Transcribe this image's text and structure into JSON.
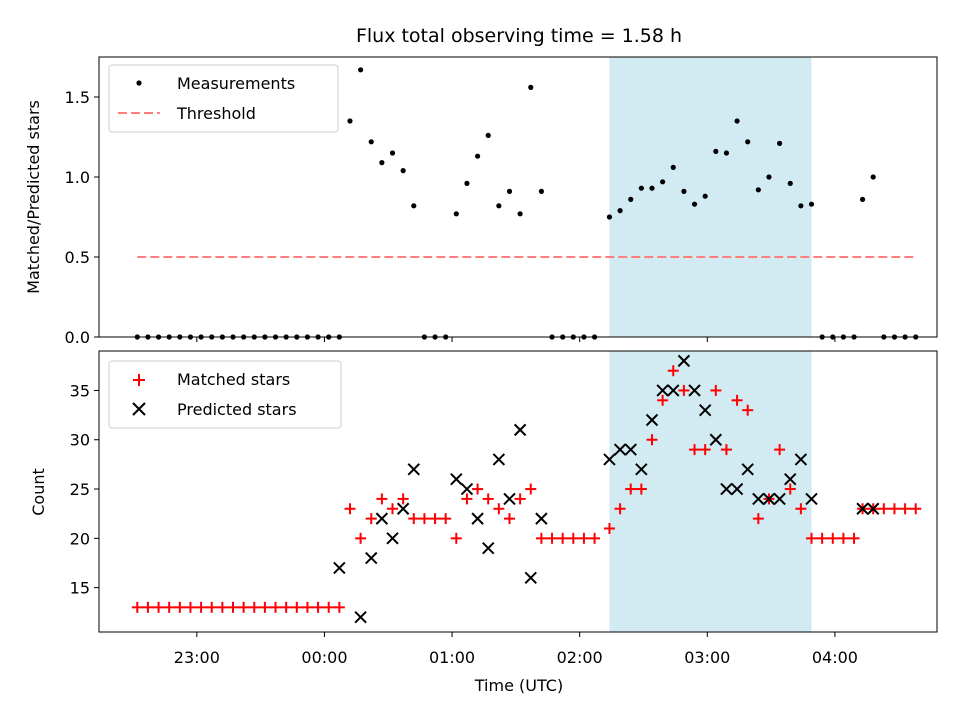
{
  "chart_data": [
    {
      "type": "scatter",
      "title": "Flux total observing time = 1.58 h",
      "ylabel": "Matched/Predicted stars",
      "xlabel": "",
      "ylim": [
        0,
        1.75
      ],
      "yticks": [
        "0.0",
        "0.5",
        "1.0",
        "1.5"
      ],
      "legend": {
        "placement": "top-left",
        "entries": [
          "Measurements",
          "Threshold"
        ]
      },
      "threshold": {
        "name": "Threshold",
        "value": 0.5,
        "x_range": [
          "22:32",
          "04:38"
        ],
        "color": "#ff7f7f"
      },
      "highlight_span": {
        "from": "02:14",
        "to": "03:49",
        "color": "#add8e6"
      },
      "series": [
        {
          "name": "Measurements",
          "color": "#000000",
          "points": [
            [
              "22:32",
              0
            ],
            [
              "22:37",
              0
            ],
            [
              "22:42",
              0
            ],
            [
              "22:47",
              0
            ],
            [
              "22:52",
              0
            ],
            [
              "22:57",
              0
            ],
            [
              "23:02",
              0
            ],
            [
              "23:07",
              0
            ],
            [
              "23:12",
              0
            ],
            [
              "23:17",
              0
            ],
            [
              "23:22",
              0
            ],
            [
              "23:27",
              0
            ],
            [
              "23:32",
              0
            ],
            [
              "23:37",
              0
            ],
            [
              "23:42",
              0
            ],
            [
              "23:47",
              0
            ],
            [
              "23:52",
              0
            ],
            [
              "23:57",
              0
            ],
            [
              "00:02",
              0
            ],
            [
              "00:07",
              0
            ],
            [
              "00:12",
              1.35
            ],
            [
              "00:17",
              1.67
            ],
            [
              "00:22",
              1.22
            ],
            [
              "00:27",
              1.09
            ],
            [
              "00:32",
              1.15
            ],
            [
              "00:37",
              1.04
            ],
            [
              "00:42",
              0.82
            ],
            [
              "00:47",
              0
            ],
            [
              "00:52",
              0
            ],
            [
              "00:57",
              0
            ],
            [
              "01:02",
              0.77
            ],
            [
              "01:07",
              0.96
            ],
            [
              "01:12",
              1.13
            ],
            [
              "01:17",
              1.26
            ],
            [
              "01:22",
              0.82
            ],
            [
              "01:27",
              0.91
            ],
            [
              "01:32",
              0.77
            ],
            [
              "01:37",
              1.56
            ],
            [
              "01:42",
              0.91
            ],
            [
              "01:47",
              0
            ],
            [
              "01:52",
              0
            ],
            [
              "01:57",
              0
            ],
            [
              "02:02",
              0
            ],
            [
              "02:07",
              0
            ],
            [
              "02:14",
              0.75
            ],
            [
              "02:19",
              0.79
            ],
            [
              "02:24",
              0.86
            ],
            [
              "02:29",
              0.93
            ],
            [
              "02:34",
              0.93
            ],
            [
              "02:39",
              0.97
            ],
            [
              "02:44",
              1.06
            ],
            [
              "02:49",
              0.91
            ],
            [
              "02:54",
              0.83
            ],
            [
              "02:59",
              0.88
            ],
            [
              "03:04",
              1.16
            ],
            [
              "03:09",
              1.15
            ],
            [
              "03:14",
              1.35
            ],
            [
              "03:19",
              1.22
            ],
            [
              "03:24",
              0.92
            ],
            [
              "03:29",
              1.0
            ],
            [
              "03:34",
              1.21
            ],
            [
              "03:39",
              0.96
            ],
            [
              "03:44",
              0.82
            ],
            [
              "03:49",
              0.83
            ],
            [
              "03:54",
              0
            ],
            [
              "03:59",
              0
            ],
            [
              "04:04",
              0
            ],
            [
              "04:09",
              0
            ],
            [
              "04:13",
              0.86
            ],
            [
              "04:18",
              1.0
            ],
            [
              "04:23",
              0
            ],
            [
              "04:28",
              0
            ],
            [
              "04:33",
              0
            ],
            [
              "04:38",
              0
            ]
          ]
        }
      ]
    },
    {
      "type": "scatter",
      "title": "",
      "ylabel": "Count",
      "xlabel": "Time (UTC)",
      "ylim": [
        10.5,
        39
      ],
      "yticks": [
        "15",
        "20",
        "25",
        "30",
        "35"
      ],
      "xticks": [
        "23:00",
        "00:00",
        "01:00",
        "02:00",
        "03:00",
        "04:00"
      ],
      "legend": {
        "placement": "top-left",
        "entries": [
          "Matched stars",
          "Predicted stars"
        ]
      },
      "highlight_span": {
        "from": "02:14",
        "to": "03:49",
        "color": "#add8e6"
      },
      "series": [
        {
          "name": "Matched stars",
          "marker": "plus",
          "color": "#ff0000",
          "points": [
            [
              "22:32",
              13
            ],
            [
              "22:37",
              13
            ],
            [
              "22:42",
              13
            ],
            [
              "22:47",
              13
            ],
            [
              "22:52",
              13
            ],
            [
              "22:57",
              13
            ],
            [
              "23:02",
              13
            ],
            [
              "23:07",
              13
            ],
            [
              "23:12",
              13
            ],
            [
              "23:17",
              13
            ],
            [
              "23:22",
              13
            ],
            [
              "23:27",
              13
            ],
            [
              "23:32",
              13
            ],
            [
              "23:37",
              13
            ],
            [
              "23:42",
              13
            ],
            [
              "23:47",
              13
            ],
            [
              "23:52",
              13
            ],
            [
              "23:57",
              13
            ],
            [
              "00:02",
              13
            ],
            [
              "00:07",
              13
            ],
            [
              "00:12",
              23
            ],
            [
              "00:17",
              20
            ],
            [
              "00:22",
              22
            ],
            [
              "00:27",
              24
            ],
            [
              "00:32",
              23
            ],
            [
              "00:37",
              24
            ],
            [
              "00:42",
              22
            ],
            [
              "00:47",
              22
            ],
            [
              "00:52",
              22
            ],
            [
              "00:57",
              22
            ],
            [
              "01:02",
              20
            ],
            [
              "01:07",
              24
            ],
            [
              "01:12",
              25
            ],
            [
              "01:17",
              24
            ],
            [
              "01:22",
              23
            ],
            [
              "01:27",
              22
            ],
            [
              "01:32",
              24
            ],
            [
              "01:37",
              25
            ],
            [
              "01:42",
              20
            ],
            [
              "01:47",
              20
            ],
            [
              "01:52",
              20
            ],
            [
              "01:57",
              20
            ],
            [
              "02:02",
              20
            ],
            [
              "02:07",
              20
            ],
            [
              "02:14",
              21
            ],
            [
              "02:19",
              23
            ],
            [
              "02:24",
              25
            ],
            [
              "02:29",
              25
            ],
            [
              "02:34",
              30
            ],
            [
              "02:39",
              34
            ],
            [
              "02:44",
              37
            ],
            [
              "02:49",
              35
            ],
            [
              "02:54",
              29
            ],
            [
              "02:59",
              29
            ],
            [
              "03:04",
              35
            ],
            [
              "03:09",
              29
            ],
            [
              "03:14",
              34
            ],
            [
              "03:19",
              33
            ],
            [
              "03:24",
              22
            ],
            [
              "03:29",
              24
            ],
            [
              "03:34",
              29
            ],
            [
              "03:39",
              25
            ],
            [
              "03:44",
              23
            ],
            [
              "03:49",
              20
            ],
            [
              "03:54",
              20
            ],
            [
              "03:59",
              20
            ],
            [
              "04:04",
              20
            ],
            [
              "04:09",
              20
            ],
            [
              "04:13",
              23
            ],
            [
              "04:18",
              23
            ],
            [
              "04:23",
              23
            ],
            [
              "04:28",
              23
            ],
            [
              "04:33",
              23
            ],
            [
              "04:38",
              23
            ]
          ]
        },
        {
          "name": "Predicted stars",
          "marker": "x",
          "color": "#000000",
          "points": [
            [
              "00:07",
              17
            ],
            [
              "00:17",
              12
            ],
            [
              "00:22",
              18
            ],
            [
              "00:27",
              22
            ],
            [
              "00:32",
              20
            ],
            [
              "00:37",
              23
            ],
            [
              "00:42",
              27
            ],
            [
              "01:02",
              26
            ],
            [
              "01:07",
              25
            ],
            [
              "01:12",
              22
            ],
            [
              "01:17",
              19
            ],
            [
              "01:22",
              28
            ],
            [
              "01:27",
              24
            ],
            [
              "01:32",
              31
            ],
            [
              "01:37",
              16
            ],
            [
              "01:42",
              22
            ],
            [
              "02:14",
              28
            ],
            [
              "02:19",
              29
            ],
            [
              "02:24",
              29
            ],
            [
              "02:29",
              27
            ],
            [
              "02:34",
              32
            ],
            [
              "02:39",
              35
            ],
            [
              "02:44",
              35
            ],
            [
              "02:49",
              38
            ],
            [
              "02:54",
              35
            ],
            [
              "02:59",
              33
            ],
            [
              "03:04",
              30
            ],
            [
              "03:09",
              25
            ],
            [
              "03:14",
              25
            ],
            [
              "03:19",
              27
            ],
            [
              "03:24",
              24
            ],
            [
              "03:29",
              24
            ],
            [
              "03:34",
              24
            ],
            [
              "03:39",
              26
            ],
            [
              "03:44",
              28
            ],
            [
              "03:49",
              24
            ],
            [
              "04:13",
              23
            ],
            [
              "04:18",
              23
            ]
          ]
        }
      ]
    }
  ]
}
